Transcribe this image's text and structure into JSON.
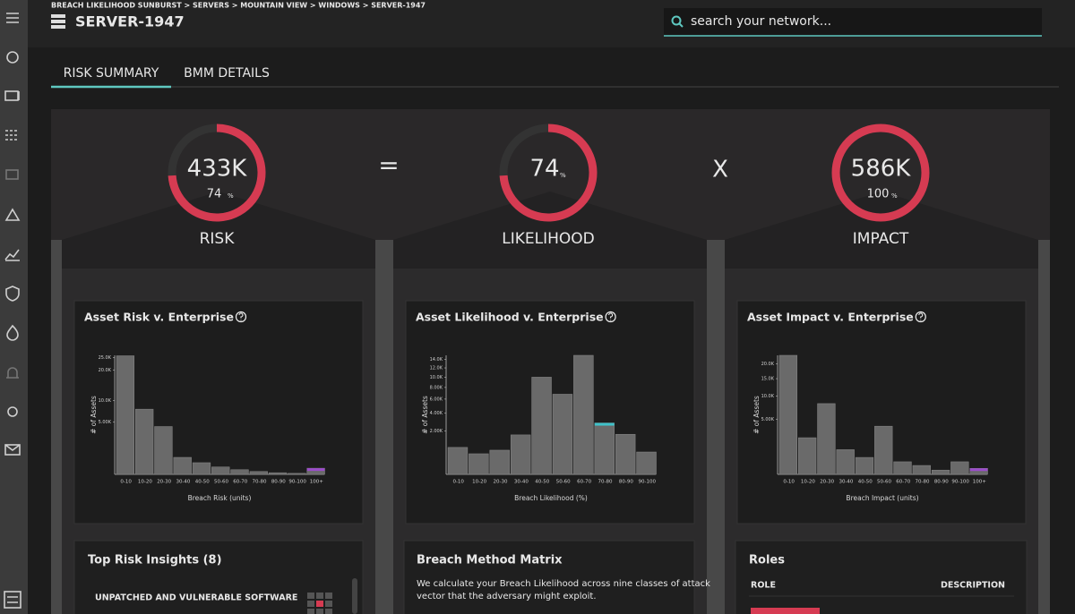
{
  "header": {
    "breadcrumb": "BREACH LIKELIHOOD SUNBURST > SERVERS > MOUNTAIN VIEW > WINDOWS > SERVER-1947",
    "title": "SERVER-1947",
    "search_placeholder": "search your network..."
  },
  "tabs": [
    "RISK SUMMARY",
    "BMM DETAILS"
  ],
  "gauges": [
    {
      "value_label": "433K",
      "percent": 74,
      "unit": "%",
      "label": "RISK"
    },
    {
      "value": 74,
      "unit": "%",
      "label": "LIKELIHOOD"
    },
    {
      "value_label": "586K",
      "percent": 100,
      "unit": "%",
      "label": "IMPACT"
    }
  ],
  "operators": [
    "=",
    "X"
  ],
  "chart_data": [
    {
      "type": "bar",
      "title": "Asset Risk v. Enterprise",
      "x_label": "Breach Risk (units)",
      "y_label": "# of Assets",
      "scale": "sqrt",
      "color": "#6a6a6a",
      "categories": [
        "0-10",
        "10-20",
        "20-30",
        "30-40",
        "40-50",
        "50-60",
        "60-70",
        "70-80",
        "80-90",
        "90-100",
        "100+"
      ],
      "values": [
        25800,
        7800,
        4200,
        530,
        250,
        100,
        40,
        15,
        5,
        2,
        70
      ],
      "highlight": {
        "index": 10,
        "color": "#9b4dca"
      },
      "ylim": [
        0,
        26000
      ],
      "yticks": [
        {
          "value": 5000,
          "label": "5.00K"
        },
        {
          "value": 10000,
          "label": "10.0K"
        },
        {
          "value": 20000,
          "label": "20.0K"
        },
        {
          "value": 25000,
          "label": "25.0K"
        }
      ]
    },
    {
      "type": "bar",
      "title": "Asset Likelihood v. Enterprise",
      "x_label": "Breach Likelihood (%)",
      "y_label": "# of Assets",
      "scale": "sqrt",
      "color": "#6a6a6a",
      "categories": [
        "0-10",
        "10-20",
        "20-30",
        "30-40",
        "40-50",
        "50-60",
        "60-70",
        "70-80",
        "80-90",
        "90-100"
      ],
      "values": [
        770,
        450,
        620,
        1650,
        10000,
        6800,
        15000,
        2800,
        1700,
        530
      ],
      "highlight": {
        "index": 7,
        "color": "#3fc1c9"
      },
      "ylim": [
        0,
        15000
      ],
      "yticks": [
        {
          "value": 2000,
          "label": "2.00K"
        },
        {
          "value": 4000,
          "label": "4.00K"
        },
        {
          "value": 6000,
          "label": "6.00K"
        },
        {
          "value": 8000,
          "label": "8.00K"
        },
        {
          "value": 10000,
          "label": "10.0K"
        },
        {
          "value": 12000,
          "label": "12.0K"
        },
        {
          "value": 14000,
          "label": "14.0K"
        }
      ]
    },
    {
      "type": "bar",
      "title": "Asset Impact v. Enterprise",
      "x_label": "Breach Impact (units)",
      "y_label": "# of Assets",
      "scale": "sqrt",
      "color": "#6a6a6a",
      "categories": [
        "0-10",
        "10-20",
        "20-30",
        "30-40",
        "40-50",
        "50-60",
        "60-70",
        "70-80",
        "80-90",
        "90-100",
        "100+"
      ],
      "values": [
        23200,
        2200,
        8200,
        1000,
        470,
        3800,
        260,
        130,
        30,
        260,
        60
      ],
      "highlight": {
        "index": 10,
        "color": "#9b4dca"
      },
      "ylim": [
        0,
        23200
      ],
      "yticks": [
        {
          "value": 5000,
          "label": "5.00K"
        },
        {
          "value": 10000,
          "label": "10.0K"
        },
        {
          "value": 15000,
          "label": "15.0K"
        },
        {
          "value": 20000,
          "label": "20.0K"
        }
      ]
    }
  ],
  "cards": {
    "insights": {
      "title": "Top Risk Insights (8)",
      "item": "UNPATCHED AND VULNERABLE SOFTWARE"
    },
    "matrix": {
      "title": "Breach Method Matrix",
      "lines": [
        "We calculate your Breach Likelihood across nine classes of attack",
        "vector that the adversary might exploit."
      ]
    },
    "roles": {
      "title": "Roles",
      "columns": [
        "ROLE",
        "DESCRIPTION"
      ]
    }
  }
}
